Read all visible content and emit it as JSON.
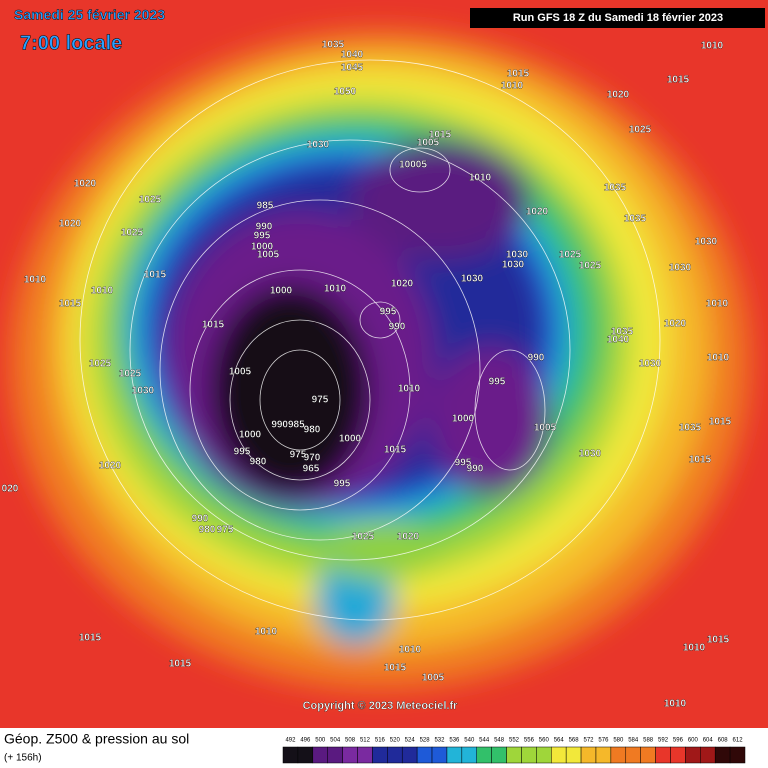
{
  "header": {
    "date": "Samedi 25 février 2023",
    "time": "7:00 locale",
    "run": "Run GFS 18 Z du Samedi 18 février 2023"
  },
  "copyright": "Copyright © 2023 Meteociel.fr",
  "legend": {
    "title": "Géop. Z500 & pression au sol",
    "lead": "(+ 156h)",
    "ticks": [
      492,
      496,
      500,
      504,
      508,
      512,
      516,
      520,
      524,
      528,
      532,
      536,
      540,
      544,
      548,
      552,
      556,
      560,
      564,
      568,
      572,
      576,
      580,
      584,
      588,
      592,
      596,
      600,
      604,
      608,
      612
    ]
  },
  "isobar_labels": [
    "1035",
    "1040",
    "1045",
    "1050",
    "1010",
    "1015",
    "1010",
    "1020",
    "1015",
    "1025",
    "1015",
    "1005",
    "10005",
    "1010",
    "1030",
    "1020",
    "1025",
    "1020",
    "1025",
    "985",
    "990",
    "995",
    "1000",
    "1005",
    "1020",
    "1035",
    "1035",
    "1030",
    "1025",
    "1025",
    "1030",
    "1030",
    "1030",
    "1030",
    "1020",
    "1010",
    "1000",
    "1015",
    "1010",
    "1010",
    "1015",
    "995",
    "990",
    "1015",
    "1035",
    "1040",
    "1020",
    "1010",
    "990",
    "1030",
    "1010",
    "1025",
    "1005",
    "1025",
    "1030",
    "995",
    "1010",
    "975",
    "1000",
    "1005",
    "1035",
    "1015",
    "1000",
    "990985",
    "980",
    "1000",
    "1015",
    "1030",
    "995",
    "980",
    "975",
    "970",
    "965",
    "995",
    "990",
    "1015",
    "1020",
    "020",
    "995",
    "990",
    "980",
    "975",
    "1025",
    "1020",
    "1015",
    "1010",
    "1015",
    "1010",
    "1015",
    "1005",
    "1015",
    "1010",
    "1010"
  ]
}
